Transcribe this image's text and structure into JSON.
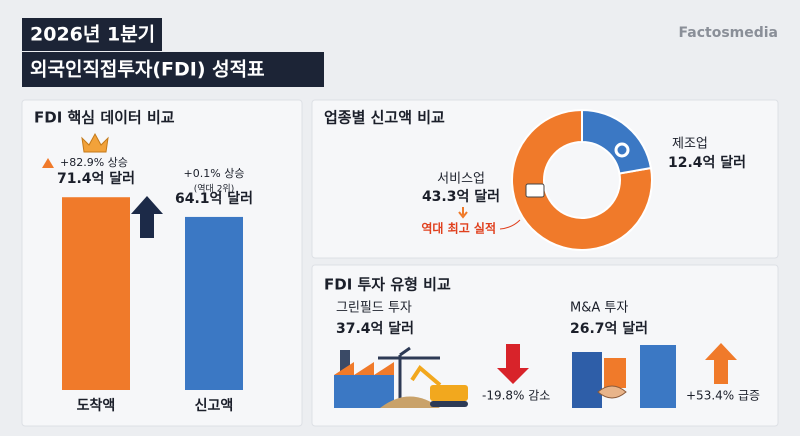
{
  "header": {
    "title_line1": "2026년 1분기",
    "title_line2": "외국인직접투자(FDI) 성적표",
    "brand": "Factosmedia"
  },
  "chart_data": [
    {
      "type": "bar",
      "title": "FDI 핵심 데이터 비교",
      "categories": [
        "도착액",
        "신고액"
      ],
      "values": [
        71.4,
        64.1
      ],
      "value_labels": [
        "71.4억 달러",
        "64.1억 달러"
      ],
      "colors": [
        "#f07a2a",
        "#3b78c4"
      ],
      "annotations": [
        "+82.9% 상승",
        "+0.1% 상승",
        "(역대 2위)"
      ]
    },
    {
      "type": "pie",
      "title": "업종별 신고액 비교",
      "categories": [
        "서비스업",
        "제조업"
      ],
      "values": [
        43.3,
        12.4
      ],
      "value_labels": [
        "43.3억 달러",
        "12.4억 달러"
      ],
      "colors": [
        "#f07a2a",
        "#3b78c4"
      ],
      "annotations": [
        "역대 최고 실적"
      ]
    }
  ],
  "investment_types": {
    "title": "FDI 투자 유형 비교",
    "items": [
      {
        "name": "그린필드 투자",
        "amount": "37.4억 달러",
        "change": "-19.8% 감소"
      },
      {
        "name": "M&A 투자",
        "amount": "26.7억 달러",
        "change": "+53.4% 급증"
      }
    ]
  }
}
